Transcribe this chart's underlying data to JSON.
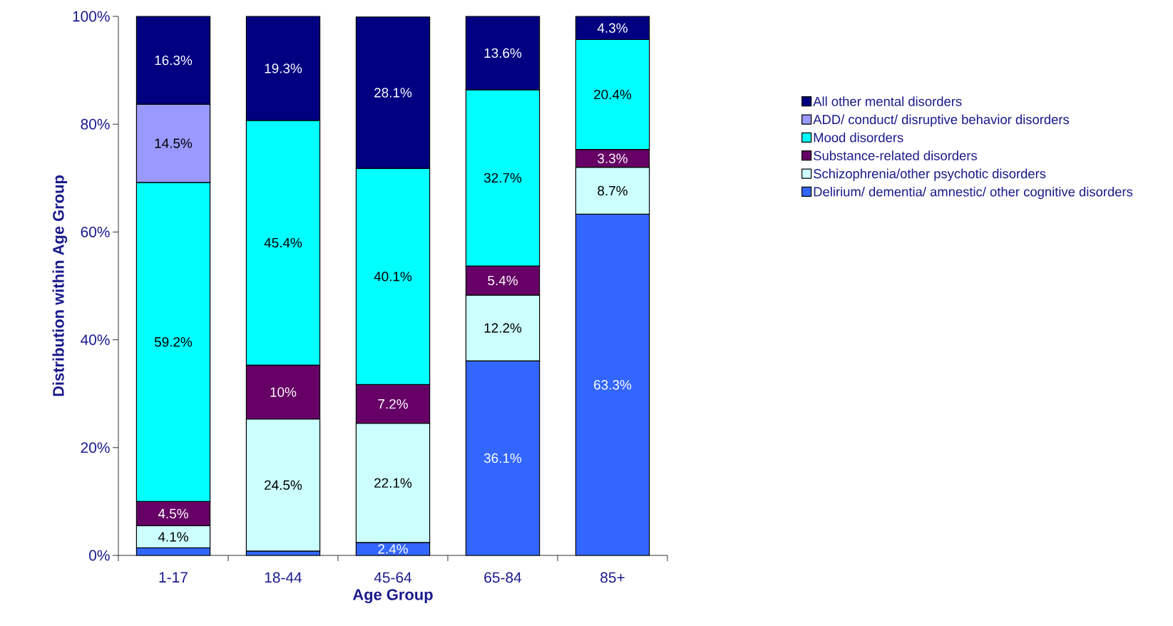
{
  "chart_data": {
    "type": "bar",
    "stacked": true,
    "xlabel": "Age Group",
    "ylabel": "Distribution within Age Group",
    "categories": [
      "1-17",
      "18-44",
      "45-64",
      "65-84",
      "85+"
    ],
    "series": [
      {
        "name": "Delirium/ dementia/ amnestic/ other cognitive disorders",
        "color": "#3366ff",
        "values": [
          1.4,
          0.8,
          2.4,
          36.1,
          63.3
        ],
        "value_labels": [
          null,
          null,
          "2.4%",
          "36.1%",
          "63.3%"
        ]
      },
      {
        "name": "Schizophrenia/other psychotic disorders",
        "color": "#ccffff",
        "values": [
          4.1,
          24.5,
          22.1,
          12.2,
          8.7
        ],
        "value_labels": [
          "4.1%",
          "24.5%",
          "22.1%",
          "12.2%",
          "8.7%"
        ]
      },
      {
        "name": "Substance-related disorders",
        "color": "#660066",
        "values": [
          4.5,
          10,
          7.2,
          5.4,
          3.3
        ],
        "value_labels": [
          "4.5%",
          "10%",
          "7.2%",
          "5.4%",
          "3.3%"
        ]
      },
      {
        "name": "Mood disorders",
        "color": "#00ffff",
        "values": [
          59.2,
          45.4,
          40.1,
          32.7,
          20.4
        ],
        "value_labels": [
          "59.2%",
          "45.4%",
          "40.1%",
          "32.7%",
          "20.4%"
        ]
      },
      {
        "name": "ADD/ conduct/ disruptive behavior disorders",
        "color": "#9999ff",
        "values": [
          14.5,
          null,
          null,
          null,
          null
        ],
        "value_labels": [
          "14.5%",
          null,
          null,
          null,
          null
        ]
      },
      {
        "name": "All other mental disorders",
        "color": "#000080",
        "values": [
          16.3,
          19.3,
          28.1,
          13.6,
          4.3
        ],
        "value_labels": [
          "16.3%",
          "19.3%",
          "28.1%",
          "13.6%",
          "4.3%"
        ]
      }
    ],
    "ylim": [
      0,
      100
    ],
    "yticks": [
      {
        "value": 0,
        "label": "0%"
      },
      {
        "value": 20,
        "label": "20%"
      },
      {
        "value": 40,
        "label": "40%"
      },
      {
        "value": 60,
        "label": "60%"
      },
      {
        "value": 80,
        "label": "80%"
      },
      {
        "value": 100,
        "label": "100%"
      }
    ],
    "grid": false,
    "legend": "right"
  }
}
